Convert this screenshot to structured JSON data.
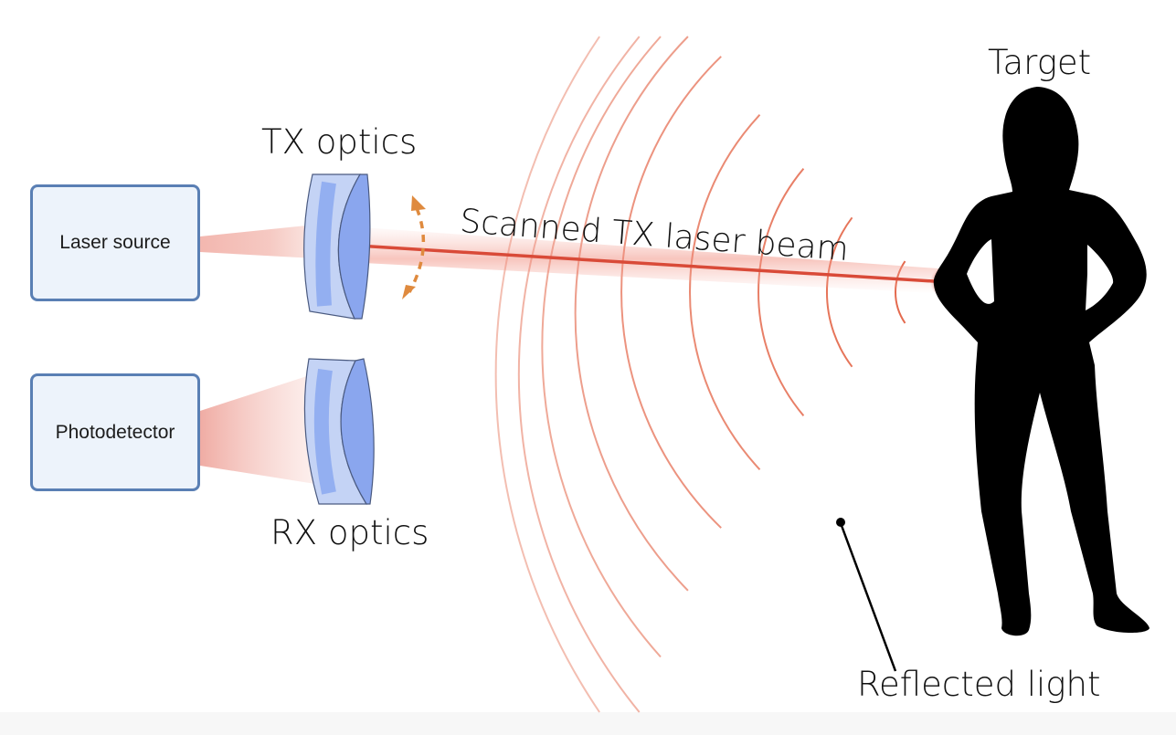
{
  "diagram": {
    "nodes": {
      "laser_source": "Laser source",
      "photodetector": "Photodetector"
    },
    "labels": {
      "tx_optics": "TX optics",
      "rx_optics": "RX optics",
      "beam": "Scanned TX laser beam",
      "target": "Target",
      "reflected": "Reflected light"
    },
    "colors": {
      "beam": "#e0523f",
      "wave": "#e46a4e",
      "box_border": "#5a7fb4",
      "box_fill": "#edf3fb",
      "lens_dark": "#7f9ff0",
      "lens_light": "#c4d3f5",
      "scan_arrow": "#df8a3e",
      "silhouette": "#000000"
    },
    "icons": {
      "scan_direction": "double-arrow-arc-icon",
      "target": "person-silhouette-icon"
    }
  }
}
